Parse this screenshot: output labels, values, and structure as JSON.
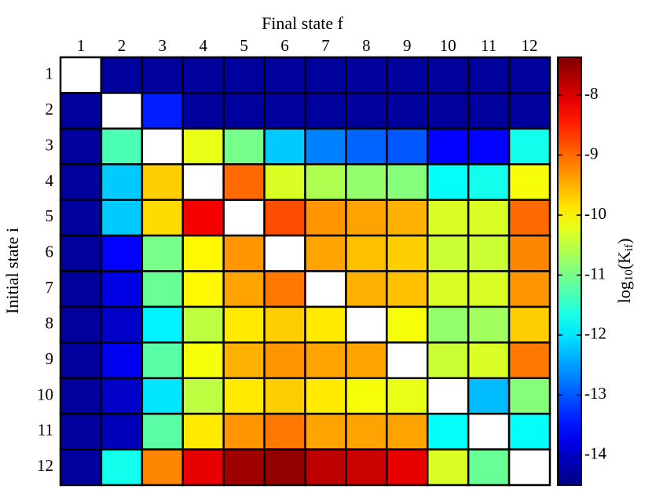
{
  "chart_data": {
    "type": "heatmap",
    "x_label": "Final state f",
    "y_label": "Initial state i",
    "colorbar_label": {
      "base": "log",
      "base_sub": "10",
      "inner": "(K",
      "inner_sub": "if",
      "close": ")"
    },
    "x": [
      "1",
      "2",
      "3",
      "4",
      "5",
      "6",
      "7",
      "8",
      "9",
      "10",
      "11",
      "12"
    ],
    "y": [
      "1",
      "2",
      "3",
      "4",
      "5",
      "6",
      "7",
      "8",
      "9",
      "10",
      "11",
      "12"
    ],
    "values": [
      [
        null,
        -14.3,
        -14.3,
        -14.3,
        -14.3,
        -14.3,
        -14.3,
        -14.3,
        -14.3,
        -14.3,
        -14.3,
        -14.3
      ],
      [
        -14.3,
        null,
        -13.4,
        -14.3,
        -14.3,
        -14.3,
        -14.3,
        -14.3,
        -14.3,
        -14.3,
        -14.3,
        -14.3
      ],
      [
        -14.3,
        -11.3,
        null,
        -10.2,
        -11.0,
        -12.2,
        -12.7,
        -12.9,
        -13.0,
        -13.6,
        -13.6,
        -11.7
      ],
      [
        -14.3,
        -12.2,
        -9.7,
        null,
        -9.0,
        -10.3,
        -10.6,
        -10.8,
        -10.9,
        -11.8,
        -11.7,
        -10.1
      ],
      [
        -14.3,
        -12.2,
        -9.8,
        -8.2,
        null,
        -8.8,
        -9.3,
        -9.4,
        -9.5,
        -10.3,
        -10.3,
        -9.0
      ],
      [
        -14.3,
        -13.6,
        -11.0,
        -10.0,
        -9.3,
        null,
        -9.4,
        -9.6,
        -9.7,
        -10.4,
        -10.4,
        -9.2
      ],
      [
        -14.3,
        -13.8,
        -11.1,
        -10.0,
        -9.4,
        -9.1,
        null,
        -9.5,
        -9.6,
        -10.3,
        -10.3,
        -9.3
      ],
      [
        -14.3,
        -14.0,
        -11.9,
        -10.5,
        -9.9,
        -9.7,
        -9.9,
        null,
        -10.1,
        -10.8,
        -10.7,
        -9.7
      ],
      [
        -14.3,
        -13.7,
        -11.2,
        -10.1,
        -9.5,
        -9.3,
        -9.4,
        -9.4,
        null,
        -10.4,
        -10.3,
        -9.1
      ],
      [
        -14.3,
        -14.0,
        -12.0,
        -10.5,
        -9.9,
        -9.7,
        -9.9,
        -10.1,
        -10.2,
        null,
        -12.3,
        -10.9
      ],
      [
        -14.3,
        -14.1,
        -11.2,
        -9.9,
        -9.3,
        -9.1,
        -9.4,
        -9.4,
        -9.4,
        -11.8,
        null,
        -11.8
      ],
      [
        -14.3,
        -11.7,
        -9.2,
        -8.1,
        -7.6,
        -7.5,
        -7.8,
        -7.9,
        -8.1,
        -10.3,
        -11.1,
        null
      ]
    ],
    "colormap": "jet",
    "zlim": [
      -14.5,
      -7.37
    ],
    "zticks": [
      -8,
      -9,
      -10,
      -11,
      -12,
      -13,
      -14
    ]
  }
}
